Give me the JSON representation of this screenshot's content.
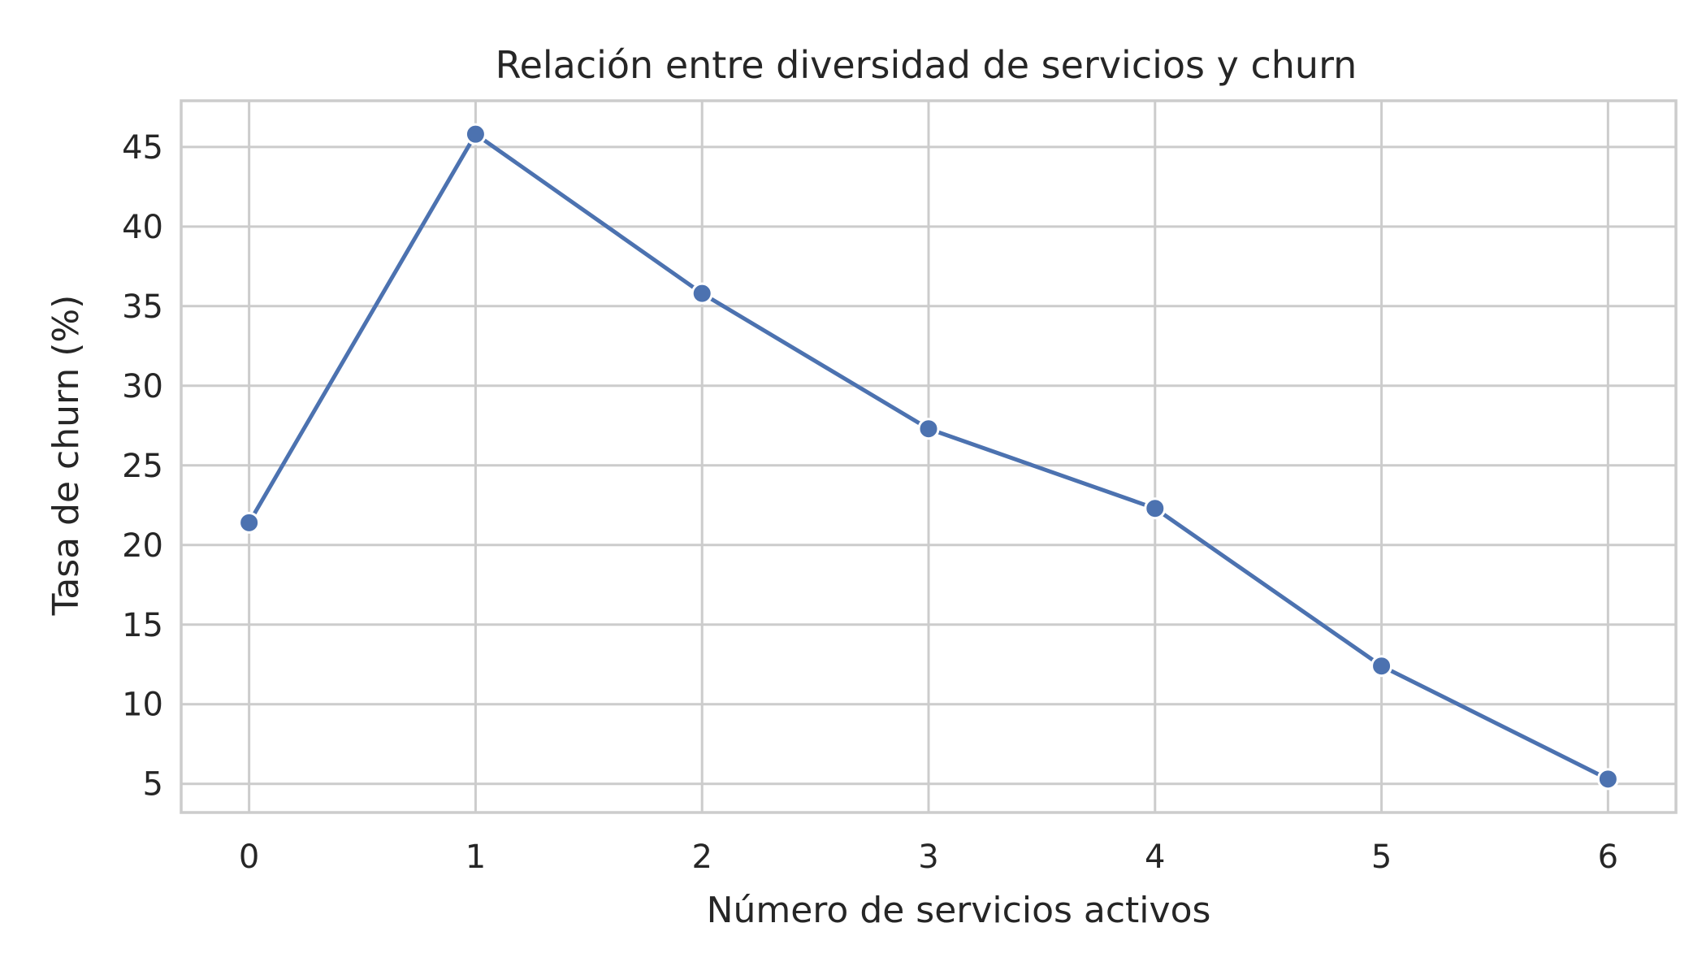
{
  "chart_data": {
    "type": "line",
    "title": "Relación entre diversidad de servicios y churn",
    "xlabel": "Número de servicios activos",
    "ylabel": "Tasa de churn (%)",
    "x": [
      0,
      1,
      2,
      3,
      4,
      5,
      6
    ],
    "series": [
      {
        "values": [
          21.4,
          45.8,
          35.8,
          27.3,
          22.3,
          12.4,
          5.3
        ]
      }
    ],
    "xticks": [
      0,
      1,
      2,
      3,
      4,
      5,
      6
    ],
    "yticks": [
      5,
      10,
      15,
      20,
      25,
      30,
      35,
      40,
      45
    ],
    "xlim": [
      -0.3,
      6.3
    ],
    "ylim": [
      3.2,
      47.9
    ],
    "grid": true,
    "markers": true,
    "colors": {
      "line": "#4c72b0",
      "marker": "#4c72b0",
      "marker_edge": "#ffffff",
      "grid": "#cccccc",
      "frame": "#cccccc",
      "text": "#262626",
      "background": "#ffffff"
    }
  }
}
